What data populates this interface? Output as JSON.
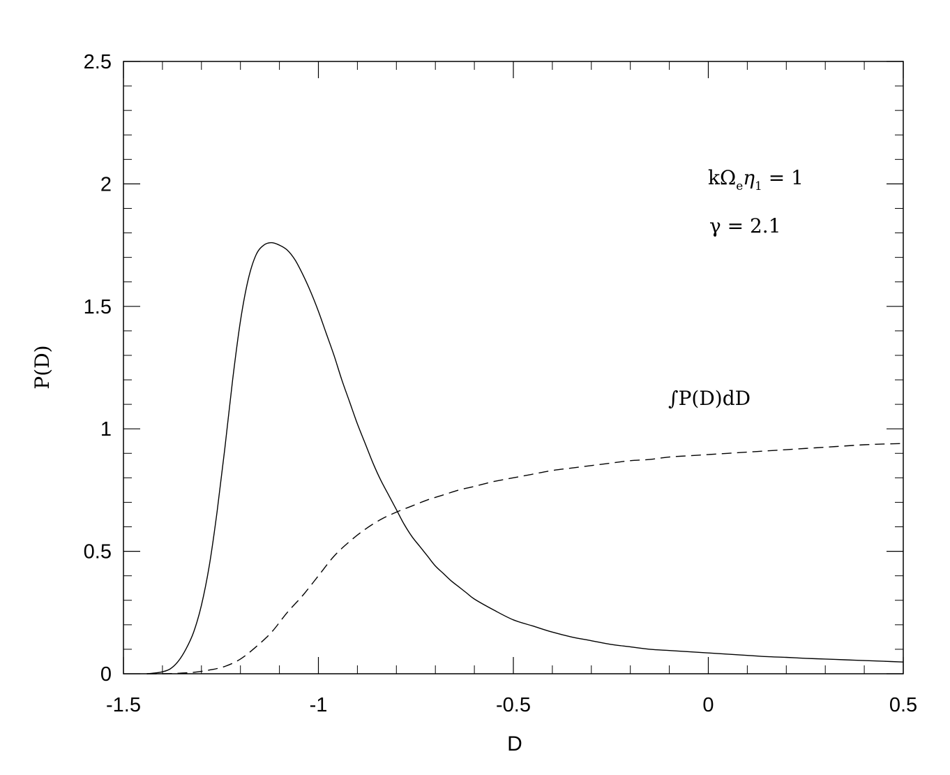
{
  "chart_data": {
    "type": "line",
    "xlabel": "D",
    "ylabel": "P(D)",
    "xlim": [
      -1.5,
      0.5
    ],
    "ylim": [
      0,
      2.5
    ],
    "x_ticks": [
      -1.5,
      -1,
      -0.5,
      0,
      0.5
    ],
    "x_tick_labels": [
      "-1.5",
      "-1",
      "-0.5",
      "0",
      "0.5"
    ],
    "y_ticks": [
      0,
      0.5,
      1,
      1.5,
      2,
      2.5
    ],
    "y_tick_labels": [
      "0",
      "0.5",
      "1",
      "1.5",
      "2",
      "2.5"
    ],
    "grid": false,
    "annotations": {
      "params_line1": "kΩeη1 = 1",
      "params_line1_parts": {
        "k": "k",
        "omega": "Ω",
        "e": "e",
        "eta": "η",
        "one": "1",
        "rest": " = 1"
      },
      "params_line2": "γ = 2.1",
      "cumulative_label": "∫P(D)dD"
    },
    "series": [
      {
        "style": "solid",
        "color": "#000000",
        "x": [
          -1.44,
          -1.42,
          -1.4,
          -1.38,
          -1.36,
          -1.34,
          -1.32,
          -1.3,
          -1.28,
          -1.26,
          -1.24,
          -1.22,
          -1.2,
          -1.18,
          -1.16,
          -1.14,
          -1.12,
          -1.1,
          -1.08,
          -1.06,
          -1.04,
          -1.02,
          -1.0,
          -0.98,
          -0.96,
          -0.94,
          -0.92,
          -0.9,
          -0.88,
          -0.86,
          -0.84,
          -0.82,
          -0.8,
          -0.78,
          -0.76,
          -0.74,
          -0.72,
          -0.7,
          -0.68,
          -0.66,
          -0.64,
          -0.62,
          -0.6,
          -0.55,
          -0.5,
          -0.45,
          -0.4,
          -0.35,
          -0.3,
          -0.25,
          -0.2,
          -0.15,
          -0.1,
          -0.05,
          0.0,
          0.05,
          0.1,
          0.15,
          0.2,
          0.25,
          0.3,
          0.35,
          0.4,
          0.45,
          0.5
        ],
        "y": [
          0.0,
          0.003,
          0.008,
          0.02,
          0.05,
          0.1,
          0.17,
          0.28,
          0.44,
          0.66,
          0.92,
          1.2,
          1.44,
          1.61,
          1.71,
          1.75,
          1.76,
          1.75,
          1.73,
          1.69,
          1.63,
          1.56,
          1.48,
          1.39,
          1.3,
          1.2,
          1.11,
          1.02,
          0.94,
          0.86,
          0.79,
          0.73,
          0.67,
          0.61,
          0.56,
          0.52,
          0.48,
          0.44,
          0.41,
          0.38,
          0.355,
          0.33,
          0.305,
          0.26,
          0.22,
          0.195,
          0.17,
          0.15,
          0.135,
          0.12,
          0.11,
          0.1,
          0.095,
          0.09,
          0.085,
          0.08,
          0.075,
          0.07,
          0.067,
          0.063,
          0.06,
          0.057,
          0.054,
          0.051,
          0.048
        ]
      },
      {
        "style": "dashed",
        "color": "#000000",
        "x": [
          -1.44,
          -1.4,
          -1.36,
          -1.32,
          -1.28,
          -1.24,
          -1.2,
          -1.16,
          -1.12,
          -1.08,
          -1.04,
          -1.0,
          -0.96,
          -0.92,
          -0.88,
          -0.84,
          -0.8,
          -0.76,
          -0.72,
          -0.68,
          -0.64,
          -0.6,
          -0.55,
          -0.5,
          -0.45,
          -0.4,
          -0.35,
          -0.3,
          -0.25,
          -0.2,
          -0.15,
          -0.1,
          -0.05,
          0.0,
          0.05,
          0.1,
          0.15,
          0.2,
          0.25,
          0.3,
          0.35,
          0.4,
          0.45,
          0.5
        ],
        "y": [
          0.0,
          0.0,
          0.002,
          0.006,
          0.015,
          0.03,
          0.06,
          0.11,
          0.17,
          0.25,
          0.32,
          0.4,
          0.48,
          0.54,
          0.59,
          0.63,
          0.66,
          0.685,
          0.71,
          0.73,
          0.75,
          0.765,
          0.785,
          0.8,
          0.815,
          0.83,
          0.84,
          0.85,
          0.86,
          0.87,
          0.875,
          0.885,
          0.89,
          0.895,
          0.9,
          0.905,
          0.91,
          0.915,
          0.92,
          0.925,
          0.93,
          0.935,
          0.938,
          0.94
        ]
      }
    ]
  }
}
